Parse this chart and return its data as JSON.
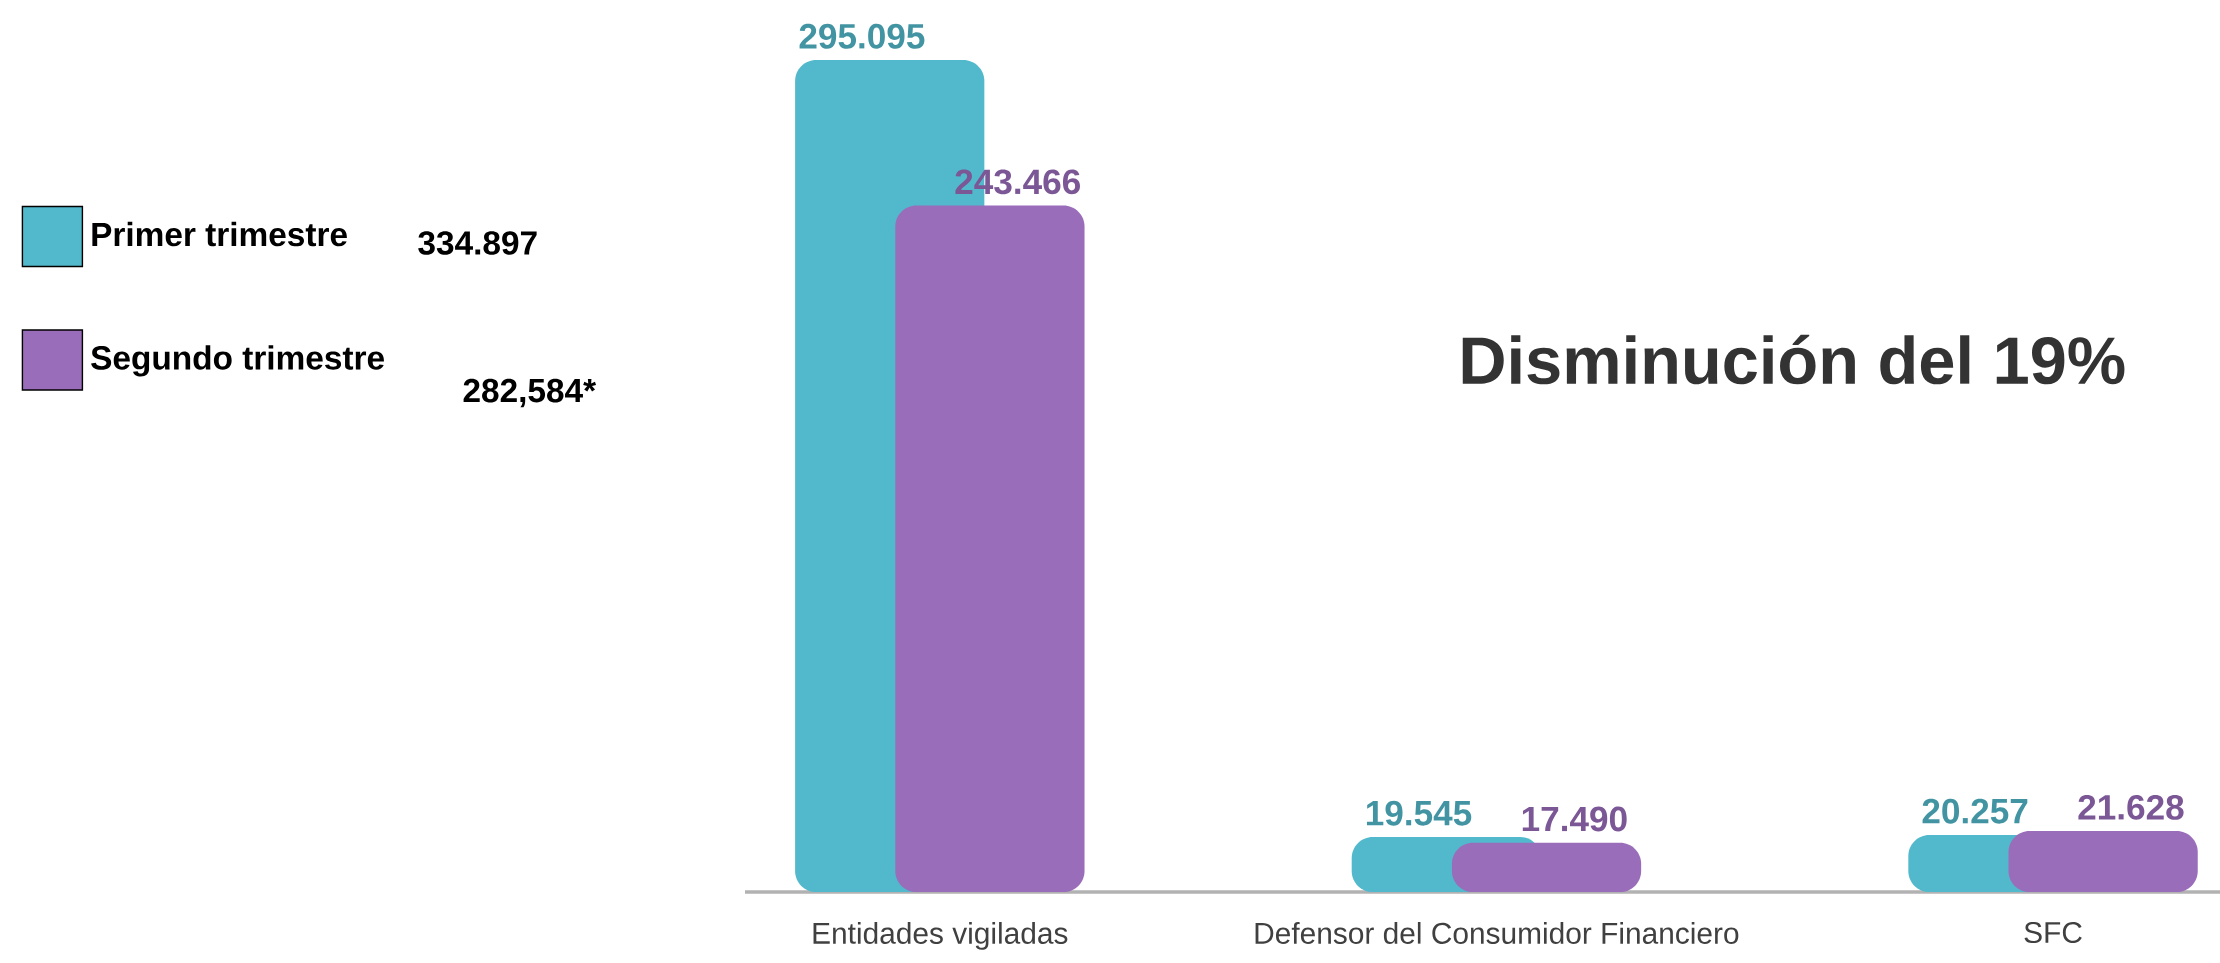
{
  "chart_data": {
    "type": "bar",
    "categories": [
      "Entidades vigiladas",
      "Defensor del Consumidor Financiero",
      "SFC"
    ],
    "series": [
      {
        "name": "Primer trimestre",
        "color": "#52b9cc",
        "values": [
          295.095,
          19.545,
          20.257
        ],
        "value_labels": [
          "295.095",
          "19.545",
          "20.257"
        ]
      },
      {
        "name": "Segundo trimestre",
        "color": "#9a6dbb",
        "values": [
          243.466,
          17.49,
          21.628
        ],
        "value_labels": [
          "243.466",
          "17.490",
          "21.628"
        ]
      }
    ],
    "legend": "left",
    "annotations": [
      "334.897",
      "282,584*",
      "Disminución del 19%"
    ]
  }
}
